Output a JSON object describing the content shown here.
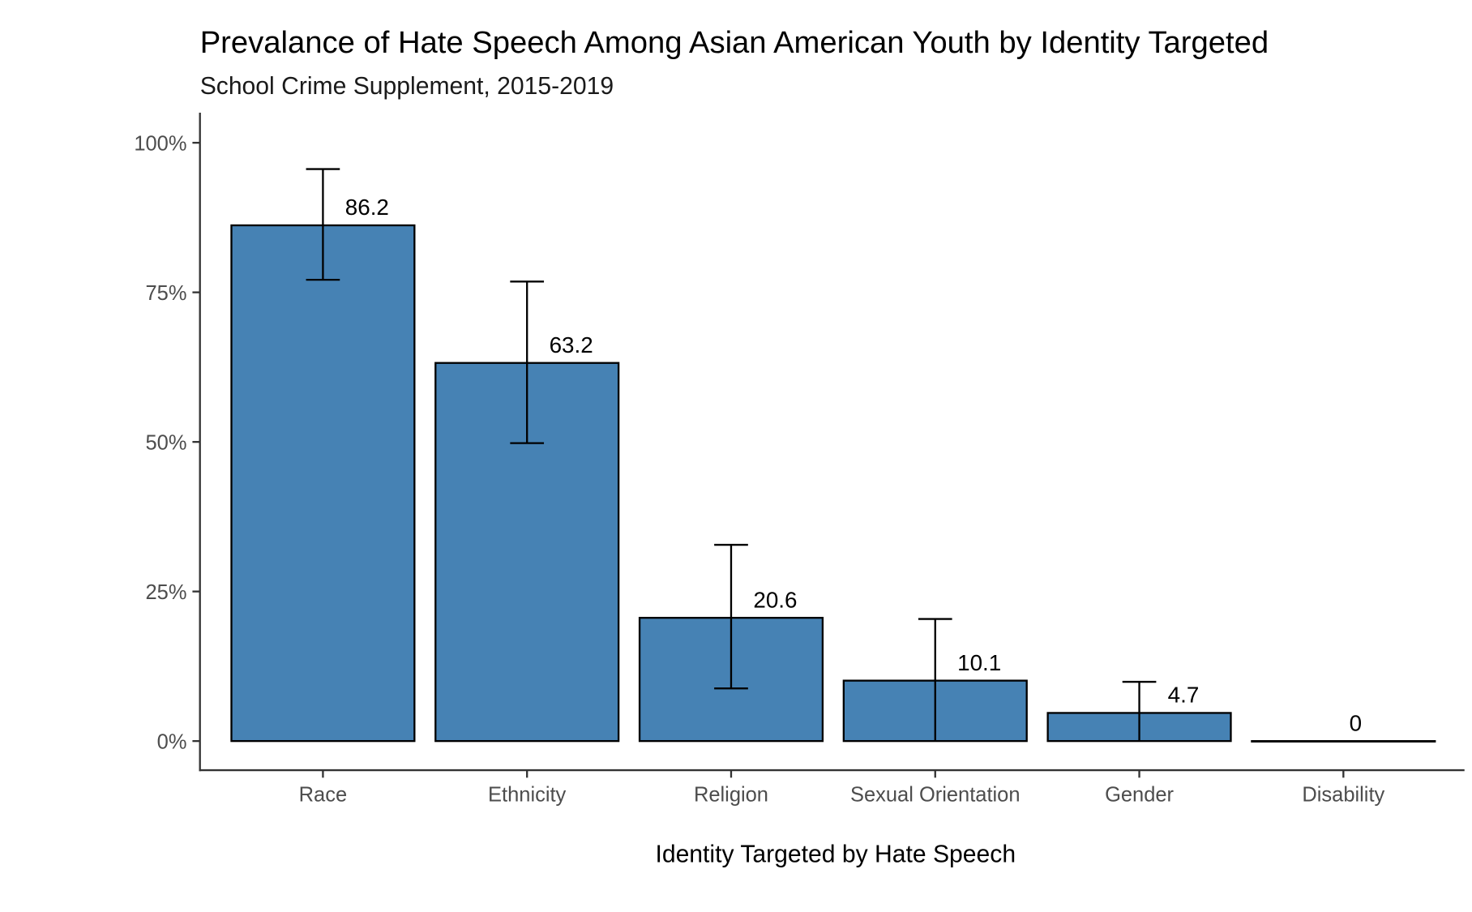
{
  "chart_data": {
    "type": "bar",
    "title": "Prevalance of Hate Speech Among Asian American Youth by Identity Targeted",
    "subtitle": "School Crime Supplement, 2015-2019",
    "xlabel": "Identity Targeted by Hate Speech",
    "ylabel": "",
    "categories": [
      "Race",
      "Ethnicity",
      "Religion",
      "Sexual Orientation",
      "Gender",
      "Disability"
    ],
    "values": [
      86.2,
      63.2,
      20.6,
      10.1,
      4.7,
      0
    ],
    "data_labels": [
      "86.2",
      "63.2",
      "20.6",
      "10.1",
      "4.7",
      "0"
    ],
    "error_low": [
      77.1,
      49.8,
      8.8,
      0,
      0,
      0
    ],
    "error_high": [
      95.6,
      76.8,
      32.8,
      20.4,
      9.9,
      0
    ],
    "ylim": [
      0,
      100
    ],
    "yticks": [
      0,
      25,
      50,
      75,
      100
    ],
    "ytick_labels": [
      "0%",
      "25%",
      "50%",
      "75%",
      "100%"
    ],
    "grid": false,
    "bar_color": "#4682B4"
  }
}
